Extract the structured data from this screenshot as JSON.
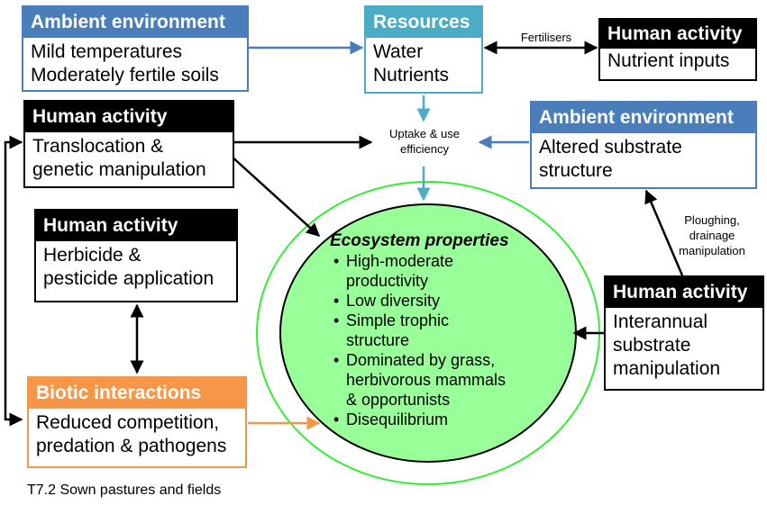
{
  "boxes": {
    "ambient_top": {
      "header": "Ambient environment",
      "lines": [
        "Mild temperatures",
        "Moderately fertile soils"
      ],
      "color": "#4a7ebb"
    },
    "resources": {
      "header": "Resources",
      "lines": [
        "Water",
        "Nutrients"
      ],
      "color": "#4bacc6"
    },
    "human_fert": {
      "header": "Human activity",
      "lines": [
        "Nutrient inputs"
      ],
      "color": "#000000"
    },
    "human_trans": {
      "header": "Human activity",
      "lines": [
        "Translocation &",
        "genetic manipulation"
      ],
      "color": "#000000"
    },
    "ambient_right": {
      "header": "Ambient environment",
      "lines": [
        "Altered substrate",
        "structure"
      ],
      "color": "#4a7ebb"
    },
    "human_herb": {
      "header": "Human activity",
      "lines": [
        "Herbicide &",
        "pesticide application"
      ],
      "color": "#000000"
    },
    "human_interannual": {
      "header": "Human activity",
      "lines": [
        "Interannual",
        "substrate",
        "manipulation"
      ],
      "color": "#000000"
    },
    "biotic": {
      "header": "Biotic interactions",
      "lines": [
        "Reduced competition,",
        "predation & pathogens"
      ],
      "color": "#f79646"
    }
  },
  "labels": {
    "fertilisers": "Fertilisers",
    "uptake": [
      "Uptake & use",
      "efficiency"
    ],
    "ploughing": [
      "Ploughing,",
      "drainage",
      "manipulation"
    ]
  },
  "ecosystem": {
    "title": "Ecosystem properties",
    "items": [
      [
        "High-moderate",
        "productivity"
      ],
      [
        "Low diversity"
      ],
      [
        "Simple trophic",
        "structure"
      ],
      [
        "Dominated by grass,",
        "herbivorous mammals",
        "& opportunists"
      ],
      [
        "Disequilibrium"
      ]
    ],
    "fill": "#99ff99",
    "ring": "#33ee33"
  },
  "caption": "T7.2 Sown pastures and fields"
}
